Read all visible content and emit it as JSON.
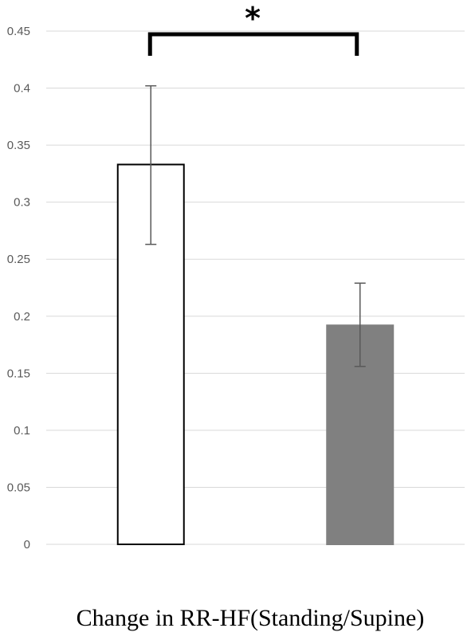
{
  "chart_data": {
    "type": "bar",
    "title": "",
    "xlabel": "Change in RR-HF(Standing/Supine)",
    "ylabel": "",
    "ylim": [
      0,
      0.45
    ],
    "yticks": [
      0,
      0.05,
      0.1,
      0.15,
      0.2,
      0.25,
      0.3,
      0.35,
      0.4,
      0.45
    ],
    "ytick_labels": [
      "0",
      "0.05",
      "0.1",
      "0.15",
      "0.2",
      "0.25",
      "0.3",
      "0.35",
      "0.4",
      "0.45"
    ],
    "grid": true,
    "legend": "none",
    "bars": [
      {
        "value": 0.333,
        "error_low": 0.263,
        "error_high": 0.402,
        "fill": "#ffffff",
        "edge": "#000000"
      },
      {
        "value": 0.192,
        "error_low": 0.156,
        "error_high": 0.229,
        "fill": "#808080",
        "edge": "#808080"
      }
    ],
    "significance": {
      "from_bar": 0,
      "to_bar": 1,
      "label": "*"
    },
    "colors": {
      "grid": "#d9d9d9",
      "ticks": "#595959",
      "error_bar": "#595959",
      "bracket": "#000000"
    }
  }
}
